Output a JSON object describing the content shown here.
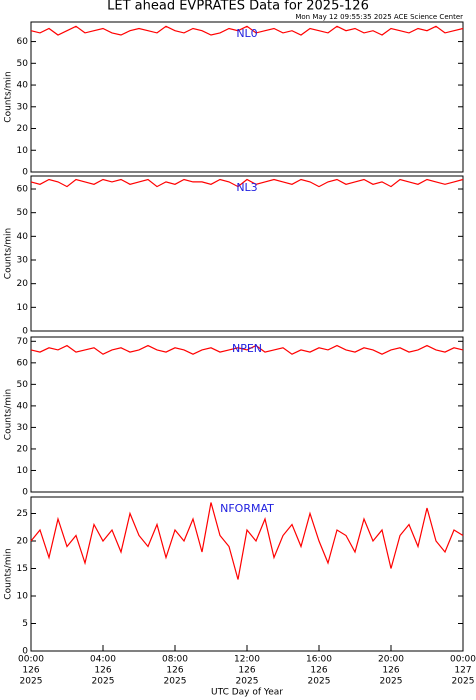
{
  "title": "LET ahead EVPRATES Data for 2025-126",
  "subtitle": "Mon May 12 09:55:35 2025 ACE Science Center",
  "chart_data": [
    {
      "type": "line",
      "label": "NL0",
      "ylabel": "Counts/min",
      "color": "#ff0000",
      "xlim": [
        0,
        24
      ],
      "ylim": [
        0,
        69
      ],
      "yticks": [
        0,
        10,
        20,
        30,
        40,
        50,
        60
      ],
      "x": [
        0,
        0.5,
        1,
        1.5,
        2,
        2.5,
        3,
        3.5,
        4,
        4.5,
        5,
        5.5,
        6,
        6.5,
        7,
        7.5,
        8,
        8.5,
        9,
        9.5,
        10,
        10.5,
        11,
        11.5,
        12,
        12.5,
        13,
        13.5,
        14,
        14.5,
        15,
        15.5,
        16,
        16.5,
        17,
        17.5,
        18,
        18.5,
        19,
        19.5,
        20,
        20.5,
        21,
        21.5,
        22,
        22.5,
        23,
        23.5,
        24
      ],
      "values": [
        65,
        64,
        66,
        63,
        65,
        67,
        64,
        65,
        66,
        64,
        63,
        65,
        66,
        65,
        64,
        67,
        65,
        64,
        66,
        65,
        63,
        64,
        66,
        65,
        67,
        64,
        65,
        66,
        64,
        65,
        63,
        66,
        65,
        64,
        67,
        65,
        66,
        64,
        65,
        63,
        66,
        65,
        64,
        66,
        65,
        67,
        64,
        65,
        66
      ]
    },
    {
      "type": "line",
      "label": "NL3",
      "ylabel": "Counts/min",
      "color": "#ff0000",
      "xlim": [
        0,
        24
      ],
      "ylim": [
        0,
        65.5
      ],
      "yticks": [
        0,
        10,
        20,
        30,
        40,
        50,
        60
      ],
      "x": [
        0,
        0.5,
        1,
        1.5,
        2,
        2.5,
        3,
        3.5,
        4,
        4.5,
        5,
        5.5,
        6,
        6.5,
        7,
        7.5,
        8,
        8.5,
        9,
        9.5,
        10,
        10.5,
        11,
        11.5,
        12,
        12.5,
        13,
        13.5,
        14,
        14.5,
        15,
        15.5,
        16,
        16.5,
        17,
        17.5,
        18,
        18.5,
        19,
        19.5,
        20,
        20.5,
        21,
        21.5,
        22,
        22.5,
        23,
        23.5,
        24
      ],
      "values": [
        63,
        62,
        64,
        63,
        61,
        64,
        63,
        62,
        64,
        63,
        64,
        62,
        63,
        64,
        61,
        63,
        62,
        64,
        63,
        63,
        62,
        64,
        63,
        61,
        64,
        62,
        63,
        64,
        63,
        62,
        64,
        63,
        61,
        63,
        64,
        62,
        63,
        64,
        62,
        63,
        61,
        64,
        63,
        62,
        64,
        63,
        62,
        63,
        64
      ]
    },
    {
      "type": "line",
      "label": "NPEN",
      "ylabel": "Counts/min",
      "color": "#ff0000",
      "xlim": [
        0,
        24
      ],
      "ylim": [
        0,
        72
      ],
      "yticks": [
        0,
        10,
        20,
        30,
        40,
        50,
        60,
        70
      ],
      "x": [
        0,
        0.5,
        1,
        1.5,
        2,
        2.5,
        3,
        3.5,
        4,
        4.5,
        5,
        5.5,
        6,
        6.5,
        7,
        7.5,
        8,
        8.5,
        9,
        9.5,
        10,
        10.5,
        11,
        11.5,
        12,
        12.5,
        13,
        13.5,
        14,
        14.5,
        15,
        15.5,
        16,
        16.5,
        17,
        17.5,
        18,
        18.5,
        19,
        19.5,
        20,
        20.5,
        21,
        21.5,
        22,
        22.5,
        23,
        23.5,
        24
      ],
      "values": [
        66,
        65,
        67,
        66,
        68,
        65,
        66,
        67,
        64,
        66,
        67,
        65,
        66,
        68,
        66,
        65,
        67,
        66,
        64,
        66,
        67,
        65,
        66,
        67,
        66,
        68,
        65,
        66,
        67,
        64,
        66,
        65,
        67,
        66,
        68,
        66,
        65,
        67,
        66,
        64,
        66,
        67,
        65,
        66,
        68,
        66,
        65,
        67,
        66
      ]
    },
    {
      "type": "line",
      "label": "NFORMAT",
      "ylabel": "Counts/min",
      "xlabel": "UTC Day of Year",
      "color": "#ff0000",
      "xlim": [
        0,
        24
      ],
      "ylim": [
        0,
        28
      ],
      "yticks": [
        0,
        5,
        10,
        15,
        20,
        25
      ],
      "xticks": [
        {
          "value": 0,
          "label": "00:00",
          "day": "126",
          "year": "2025"
        },
        {
          "value": 4,
          "label": "04:00",
          "day": "126",
          "year": "2025"
        },
        {
          "value": 8,
          "label": "08:00",
          "day": "126",
          "year": "2025"
        },
        {
          "value": 12,
          "label": "12:00",
          "day": "126",
          "year": "2025"
        },
        {
          "value": 16,
          "label": "16:00",
          "day": "126",
          "year": "2025"
        },
        {
          "value": 20,
          "label": "20:00",
          "day": "126",
          "year": "2025"
        },
        {
          "value": 24,
          "label": "00:00",
          "day": "127",
          "year": "2025"
        }
      ],
      "x": [
        0,
        0.5,
        1,
        1.5,
        2,
        2.5,
        3,
        3.5,
        4,
        4.5,
        5,
        5.5,
        6,
        6.5,
        7,
        7.5,
        8,
        8.5,
        9,
        9.5,
        10,
        10.5,
        11,
        11.5,
        12,
        12.5,
        13,
        13.5,
        14,
        14.5,
        15,
        15.5,
        16,
        16.5,
        17,
        17.5,
        18,
        18.5,
        19,
        19.5,
        20,
        20.5,
        21,
        21.5,
        22,
        22.5,
        23,
        23.5,
        24
      ],
      "values": [
        20,
        22,
        17,
        24,
        19,
        21,
        16,
        23,
        20,
        22,
        18,
        25,
        21,
        19,
        23,
        17,
        22,
        20,
        24,
        18,
        27,
        21,
        19,
        13,
        22,
        20,
        24,
        17,
        21,
        23,
        19,
        25,
        20,
        16,
        22,
        21,
        18,
        24,
        20,
        22,
        15,
        21,
        23,
        19,
        26,
        20,
        18,
        22,
        21
      ]
    }
  ]
}
